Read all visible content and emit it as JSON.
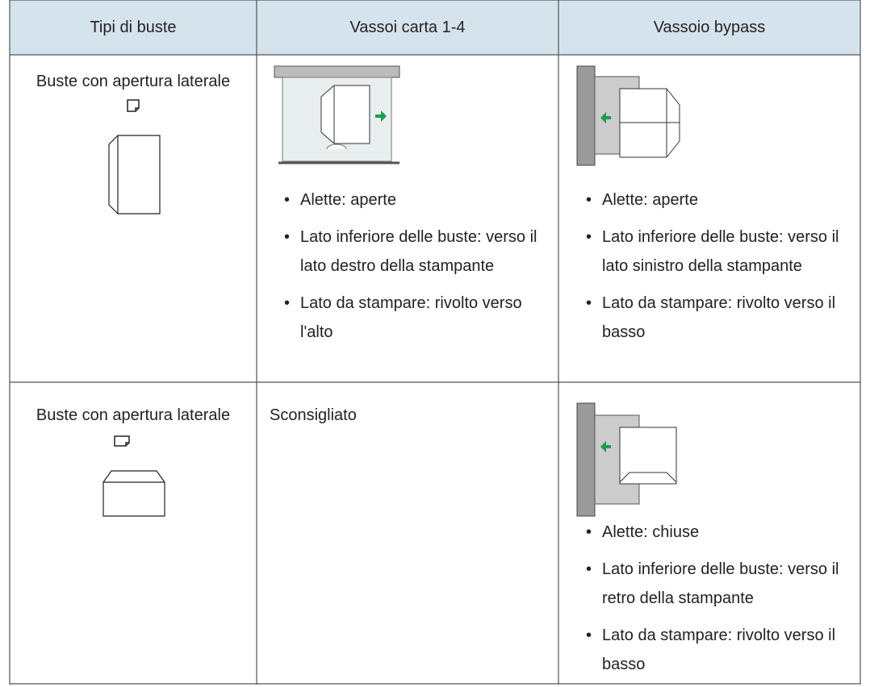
{
  "table": {
    "headers": [
      "Tipi di buste",
      "Vassoi carta 1-4",
      "Vassoio bypass"
    ],
    "rows": [
      {
        "type": "Buste con apertura laterale",
        "tray_bullets": [
          "Alette: aperte",
          "Lato inferiore delle buste: verso il lato destro della stampante",
          "Lato da stampare: rivolto verso l'alto"
        ],
        "bypass_bullets": [
          "Alette: aperte",
          "Lato inferiore delle buste: verso il lato sinistro della stampante",
          "Lato da stampare: rivolto verso il basso"
        ]
      },
      {
        "type": "Buste con apertura laterale",
        "tray": "Sconsigliato",
        "bypass_bullets": [
          "Alette: chiuse",
          "Lato inferiore delle buste: verso il retro della stampante",
          "Lato da stampare: rivolto verso il basso"
        ]
      }
    ]
  }
}
